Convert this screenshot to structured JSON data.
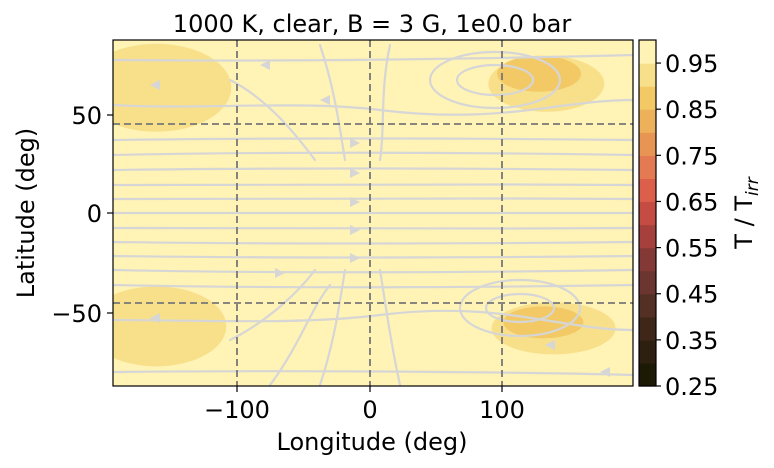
{
  "chart_data": {
    "type": "heatmap",
    "title": "1000 K, clear, B = 3 G, 1e0.0 bar",
    "xlabel": "Longitude (deg)",
    "ylabel": "Latitude (deg)",
    "xlim": [
      -180,
      180
    ],
    "ylim": [
      -87,
      87
    ],
    "xticks": [
      -100,
      0,
      100
    ],
    "xtick_labels": [
      "−100",
      "0",
      "100"
    ],
    "yticks": [
      -50,
      0,
      50
    ],
    "ytick_labels": [
      "−50",
      "0",
      "50"
    ],
    "reference_lines": {
      "longitude": [
        -90,
        0,
        90
      ],
      "latitude": [
        -45,
        45
      ],
      "style": "dashed gray"
    },
    "colorbar": {
      "label_main": "T / T",
      "label_sub": "irr",
      "levels": [
        0.25,
        0.3,
        0.35,
        0.4,
        0.45,
        0.5,
        0.55,
        0.6,
        0.65,
        0.7,
        0.75,
        0.8,
        0.85,
        0.9,
        0.95,
        1.0
      ],
      "colors": [
        "#1c1a05",
        "#2e2010",
        "#3e2719",
        "#533023",
        "#6b3530",
        "#833a36",
        "#a5403d",
        "#c44c42",
        "#db5f4b",
        "#e47a52",
        "#e89553",
        "#edb15b",
        "#f2c965",
        "#f8e08b",
        "#fff3b5"
      ],
      "ticks": [
        0.25,
        0.35,
        0.45,
        0.55,
        0.65,
        0.75,
        0.85,
        0.95
      ],
      "tick_labels": [
        "0.25",
        "0.35",
        "0.45",
        "0.55",
        "0.65",
        "0.75",
        "0.85",
        "0.95"
      ]
    },
    "field": {
      "background": 0.97,
      "features": [
        {
          "lon": 120,
          "lat": 65,
          "value": 0.9
        },
        {
          "lon": 115,
          "lat": 70,
          "value": 0.85
        },
        {
          "lon": 125,
          "lat": -58,
          "value": 0.9
        },
        {
          "lon": 118,
          "lat": -55,
          "value": 0.85
        },
        {
          "lon": -150,
          "lat": 63,
          "value": 0.9
        },
        {
          "lon": -150,
          "lat": -57,
          "value": 0.9
        }
      ]
    },
    "streamlines": {
      "color": "#d6d6d6",
      "description": "wind streamlines: eastward equatorial jet, westward flow at high latitudes"
    }
  }
}
